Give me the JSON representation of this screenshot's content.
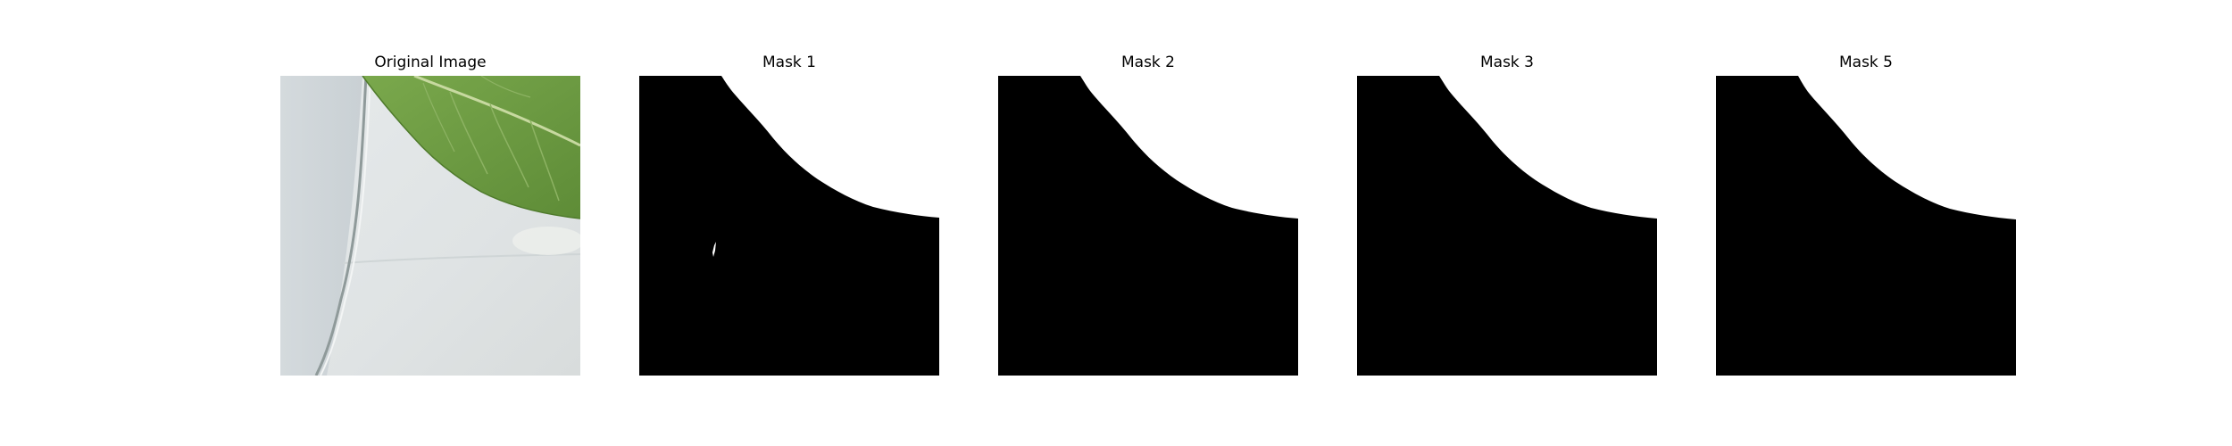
{
  "figure": {
    "panels": [
      {
        "title": "Original Image",
        "kind": "photo"
      },
      {
        "title": "Mask 1",
        "kind": "mask",
        "has_speck": true
      },
      {
        "title": "Mask 2",
        "kind": "mask",
        "has_speck": false
      },
      {
        "title": "Mask 3",
        "kind": "mask",
        "has_speck": false
      },
      {
        "title": "Mask 5",
        "kind": "mask",
        "has_speck": false
      }
    ],
    "colors": {
      "background": "#ffffff",
      "mask_on": "#000000",
      "mask_off": "#ffffff",
      "leaf": "#6f9a45",
      "leaf_dark": "#55812f",
      "leaf_vein": "#c7d9a0",
      "surface": "#dde2e4",
      "surface_light": "#ebeeee",
      "edge_line": "#8f9a9a"
    }
  }
}
